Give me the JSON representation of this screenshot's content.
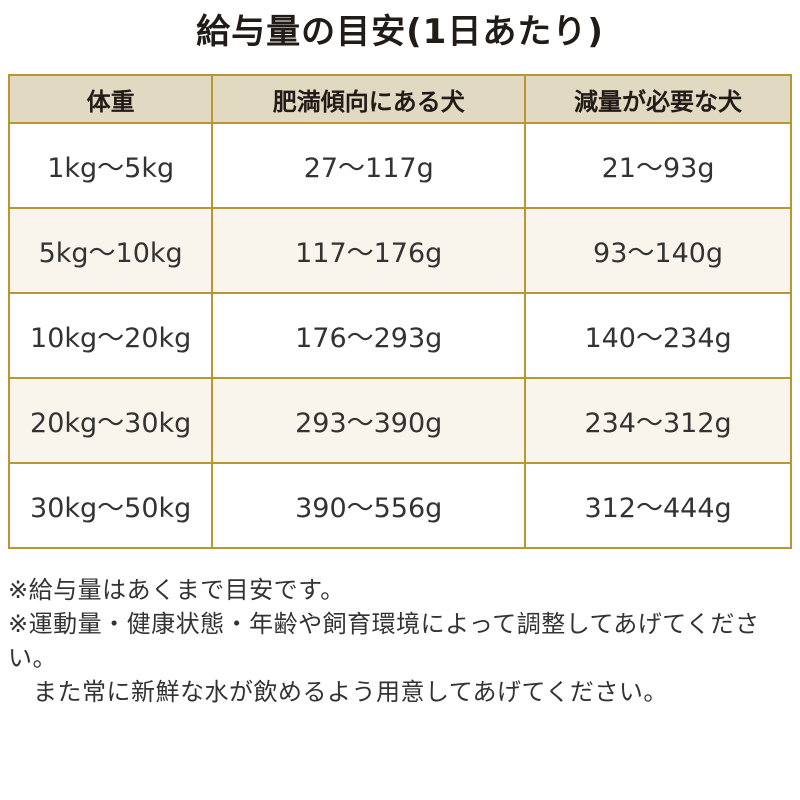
{
  "title": "給与量の目安(1日あたり)",
  "table": {
    "headers": [
      "体重",
      "肥満傾向にある犬",
      "減量が必要な犬"
    ],
    "rows": [
      [
        "1kg〜5kg",
        "27〜117g",
        "21〜93g"
      ],
      [
        "5kg〜10kg",
        "117〜176g",
        "93〜140g"
      ],
      [
        "10kg〜20kg",
        "176〜293g",
        "140〜234g"
      ],
      [
        "20kg〜30kg",
        "293〜390g",
        "234〜312g"
      ],
      [
        "30kg〜50kg",
        "390〜556g",
        "312〜444g"
      ]
    ]
  },
  "notes": [
    "※給与量はあくまで目安です。",
    "※運動量・健康状態・年齢や飼育環境によって調整してあげてください。",
    "また常に新鮮な水が飲めるよう用意してあげてください。"
  ],
  "colors": {
    "header_bg": "#e2d9c3",
    "alt_row_bg": "#f9f5ec",
    "border_gold": "#b9962f",
    "cell_text": "#333333",
    "title_text": "#221c18",
    "page_bg": "#ffffff"
  }
}
